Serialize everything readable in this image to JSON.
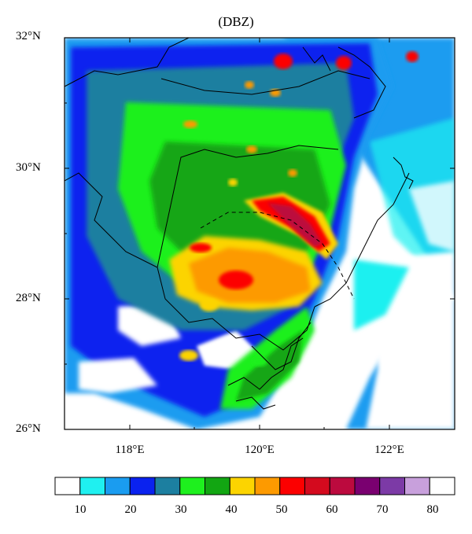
{
  "title": "(DBZ)",
  "lat_labels": [
    "32°N",
    "30°N",
    "28°N",
    "26°N"
  ],
  "lon_labels": [
    "118°E",
    "120°E",
    "122°E"
  ],
  "colorbar": {
    "colors": [
      "#ffffff",
      "#1ff0f0",
      "#1a9cf0",
      "#0a22ef",
      "#1c7fa0",
      "#1ef01e",
      "#12a612",
      "#fcd400",
      "#fd9a00",
      "#fc0000",
      "#d40a1e",
      "#bc0a3e",
      "#7a0070",
      "#7c3aa6",
      "#c8a0dc",
      "#ffffff"
    ],
    "labels": [
      "10",
      "20",
      "30",
      "40",
      "50",
      "60",
      "70",
      "80"
    ]
  },
  "map": {
    "lon_range": [
      117,
      123
    ],
    "lat_range": [
      26,
      32
    ]
  }
}
